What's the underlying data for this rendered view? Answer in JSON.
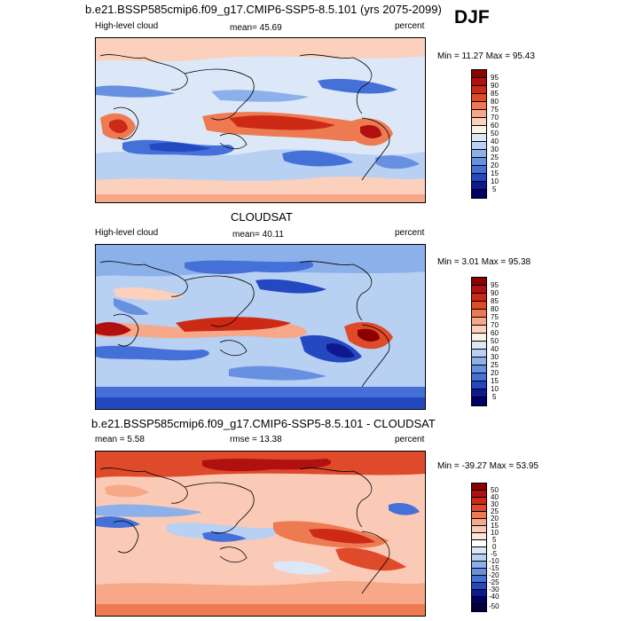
{
  "season": "DJF",
  "panels": [
    {
      "title": "b.e21.BSSP585cmip6.f09_g17.CMIP6-SSP5-8.5.101 (yrs 2075-2099)",
      "left_label": "High-level cloud",
      "center_label": "mean=  45.69",
      "right_label": "percent",
      "minmax": "Min =  11.27 Max =  95.43",
      "levels": [
        "95",
        "90",
        "85",
        "80",
        "75",
        "70",
        "60",
        "50",
        "40",
        "30",
        "25",
        "20",
        "15",
        "10",
        "5"
      ],
      "colors": [
        "#8b0000",
        "#b01010",
        "#cc2a14",
        "#de4a2a",
        "#ee7a52",
        "#f6a888",
        "#fbd0bc",
        "#fdf0e6",
        "#dce8f8",
        "#b8d0f2",
        "#8cb0ea",
        "#6890e0",
        "#4470d8",
        "#2448c0",
        "#101890",
        "#000066"
      ]
    },
    {
      "title": "CLOUDSAT",
      "left_label": "High-level cloud",
      "center_label": "mean=  40.11",
      "right_label": "percent",
      "minmax": "Min =   3.01 Max =  95.38",
      "levels": [
        "95",
        "90",
        "85",
        "80",
        "75",
        "70",
        "60",
        "50",
        "40",
        "30",
        "25",
        "20",
        "15",
        "10",
        "5"
      ],
      "colors": [
        "#8b0000",
        "#b01010",
        "#cc2a14",
        "#de4a2a",
        "#ee7a52",
        "#f6a888",
        "#fbd0bc",
        "#fdf0e6",
        "#dce8f8",
        "#b8d0f2",
        "#8cb0ea",
        "#6890e0",
        "#4470d8",
        "#2448c0",
        "#101890",
        "#000066"
      ]
    },
    {
      "title": "b.e21.BSSP585cmip6.f09_g17.CMIP6-SSP5-8.5.101 - CLOUDSAT",
      "left_label": "mean =   5.58",
      "center_label": "rmse =  13.38",
      "right_label": "percent",
      "minmax": "Min = -39.27 Max =  53.95",
      "levels": [
        "50",
        "40",
        "30",
        "25",
        "20",
        "15",
        "10",
        "5",
        "0",
        "-5",
        "-10",
        "-15",
        "-20",
        "-25",
        "-30",
        "-40",
        "-50"
      ],
      "colors": [
        "#8b0000",
        "#b01010",
        "#cc2a14",
        "#de4a2a",
        "#ee7a52",
        "#f6a888",
        "#fbcab6",
        "#fde6da",
        "#ffffff",
        "#dce8f8",
        "#b8d0f2",
        "#8cb0ea",
        "#6890e0",
        "#4470d8",
        "#2448c0",
        "#101890",
        "#000066",
        "#000040"
      ]
    }
  ]
}
